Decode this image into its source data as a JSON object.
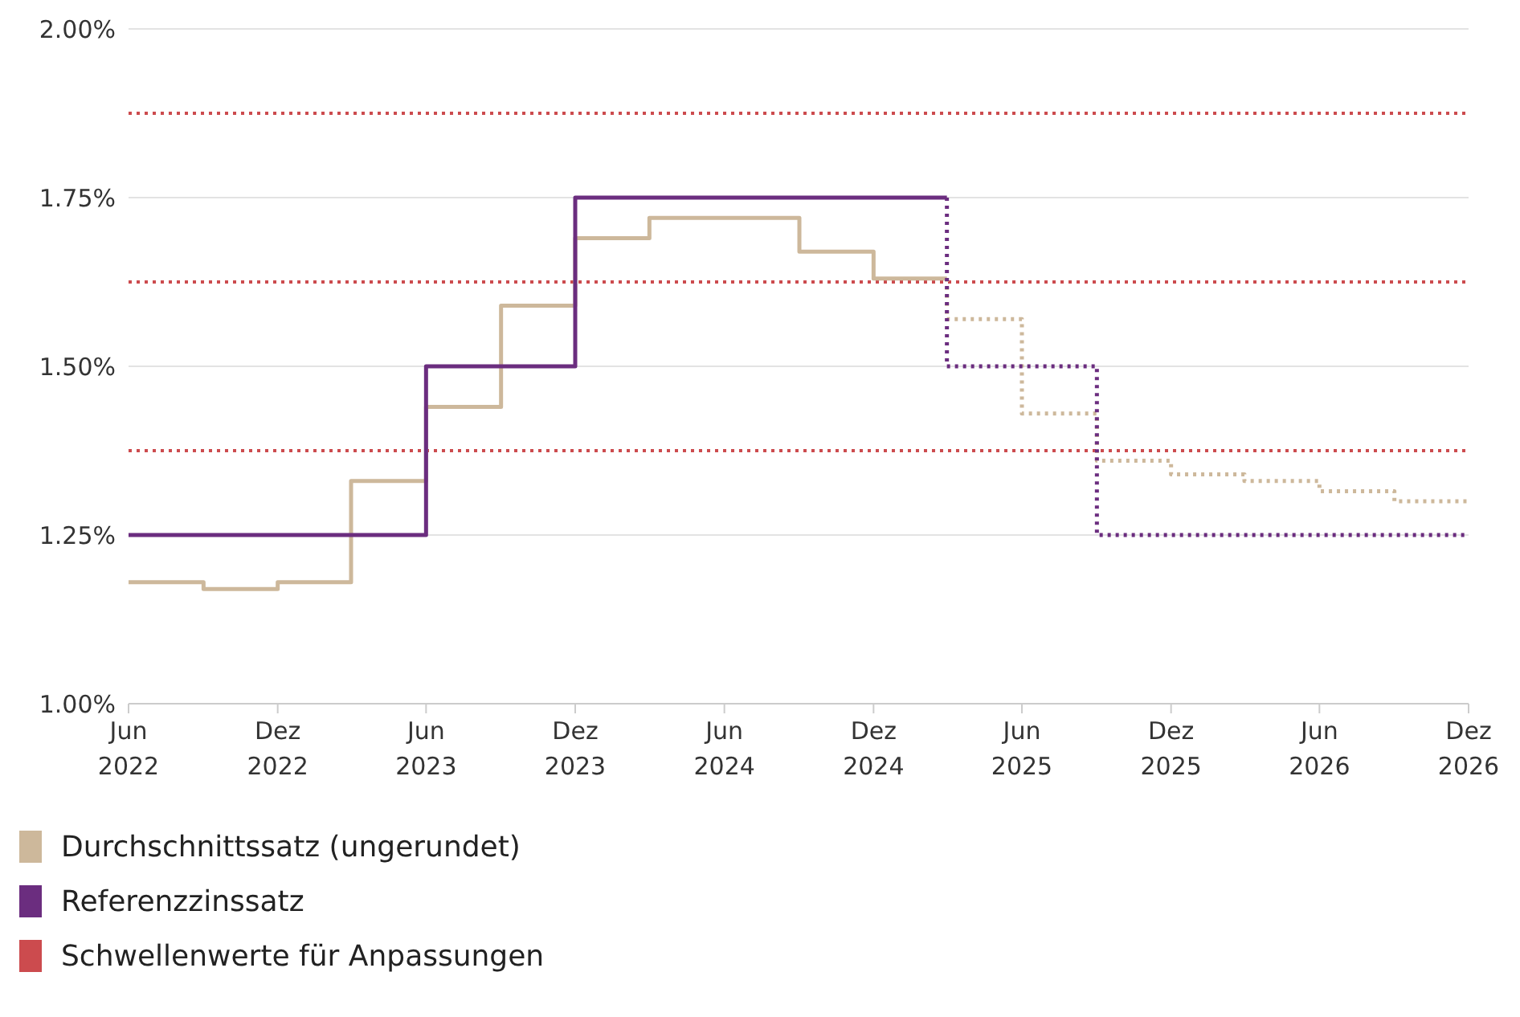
{
  "chart_data": {
    "type": "step",
    "ylim": [
      1.0,
      2.0
    ],
    "yticks": [
      {
        "value": 1.0,
        "label": "1.00%"
      },
      {
        "value": 1.25,
        "label": "1.25%"
      },
      {
        "value": 1.5,
        "label": "1.50%"
      },
      {
        "value": 1.75,
        "label": "1.75%"
      },
      {
        "value": 2.0,
        "label": "2.00%"
      }
    ],
    "xlim": [
      "2022-06",
      "2026-12"
    ],
    "xticks": [
      {
        "value": "2022-06",
        "label": "Jun 2022"
      },
      {
        "value": "2022-12",
        "label": "Dez 2022"
      },
      {
        "value": "2023-06",
        "label": "Jun 2023"
      },
      {
        "value": "2023-12",
        "label": "Dez 2023"
      },
      {
        "value": "2024-06",
        "label": "Jun 2024"
      },
      {
        "value": "2024-12",
        "label": "Dez 2024"
      },
      {
        "value": "2025-06",
        "label": "Jun 2025"
      },
      {
        "value": "2025-12",
        "label": "Dez 2025"
      },
      {
        "value": "2026-06",
        "label": "Jun 2026"
      },
      {
        "value": "2026-12",
        "label": "Dez 2026"
      }
    ],
    "grid": "y",
    "legend": "bottom",
    "marker": "none",
    "series": [
      {
        "name": "Durchschnittssatz (ungerundet)",
        "color": "#cdb89b",
        "line_style": "solid",
        "x": [
          "2022-06",
          "2022-09",
          "2022-12",
          "2023-03",
          "2023-06",
          "2023-09",
          "2023-12",
          "2024-03",
          "2024-06",
          "2024-09",
          "2024-12",
          "2025-03"
        ],
        "values": [
          1.18,
          1.17,
          1.18,
          1.33,
          1.44,
          1.59,
          1.69,
          1.72,
          1.72,
          1.67,
          1.63,
          1.63
        ]
      },
      {
        "color": "#cdb89b",
        "line_style": "dotted",
        "x": [
          "2025-03",
          "2025-03",
          "2025-06",
          "2025-09",
          "2025-12",
          "2026-03",
          "2026-06",
          "2026-09",
          "2026-12"
        ],
        "values": [
          1.63,
          1.57,
          1.43,
          1.36,
          1.34,
          1.33,
          1.315,
          1.3,
          1.3
        ]
      },
      {
        "name": "Referenzzinssatz",
        "color": "#6b2d7f",
        "line_style": "solid",
        "x": [
          "2022-06",
          "2023-06",
          "2023-12",
          "2025-03"
        ],
        "values": [
          1.25,
          1.5,
          1.75,
          1.75
        ]
      },
      {
        "color": "#6b2d7f",
        "line_style": "dotted",
        "x": [
          "2025-03",
          "2025-03",
          "2025-09",
          "2026-12"
        ],
        "values": [
          1.75,
          1.5,
          1.25,
          1.25
        ]
      }
    ],
    "ref_lines": [
      {
        "axis": "y",
        "value": 1.375,
        "label": "Schwellenwerte für Anpassungen",
        "color": "#cc4b4e",
        "line_style": "dotted"
      },
      {
        "axis": "y",
        "value": 1.625,
        "color": "#cc4b4e",
        "line_style": "dotted"
      },
      {
        "axis": "y",
        "value": 1.875,
        "color": "#cc4b4e",
        "line_style": "dotted"
      }
    ]
  }
}
